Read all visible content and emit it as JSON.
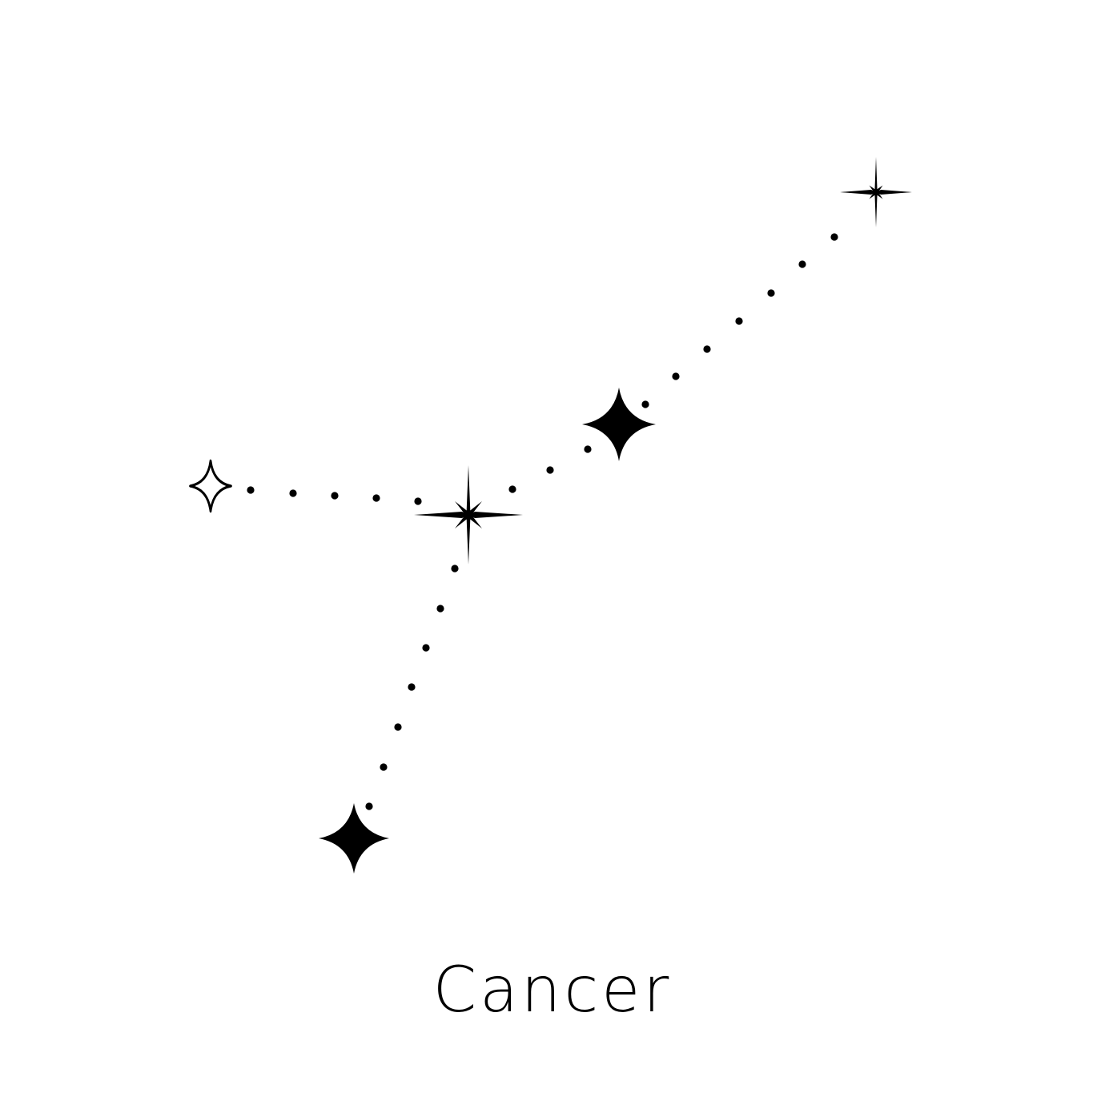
{
  "title": "Cancer",
  "colors": {
    "background": "#ffffff",
    "ink": "#000000"
  },
  "stars": [
    {
      "name": "star-far-right",
      "style": "sharp-8"
    },
    {
      "name": "star-upper-middle",
      "style": "four-point"
    },
    {
      "name": "star-center",
      "style": "sharp-8"
    },
    {
      "name": "star-left",
      "style": "outline-four-point"
    },
    {
      "name": "star-bottom",
      "style": "four-point"
    }
  ]
}
